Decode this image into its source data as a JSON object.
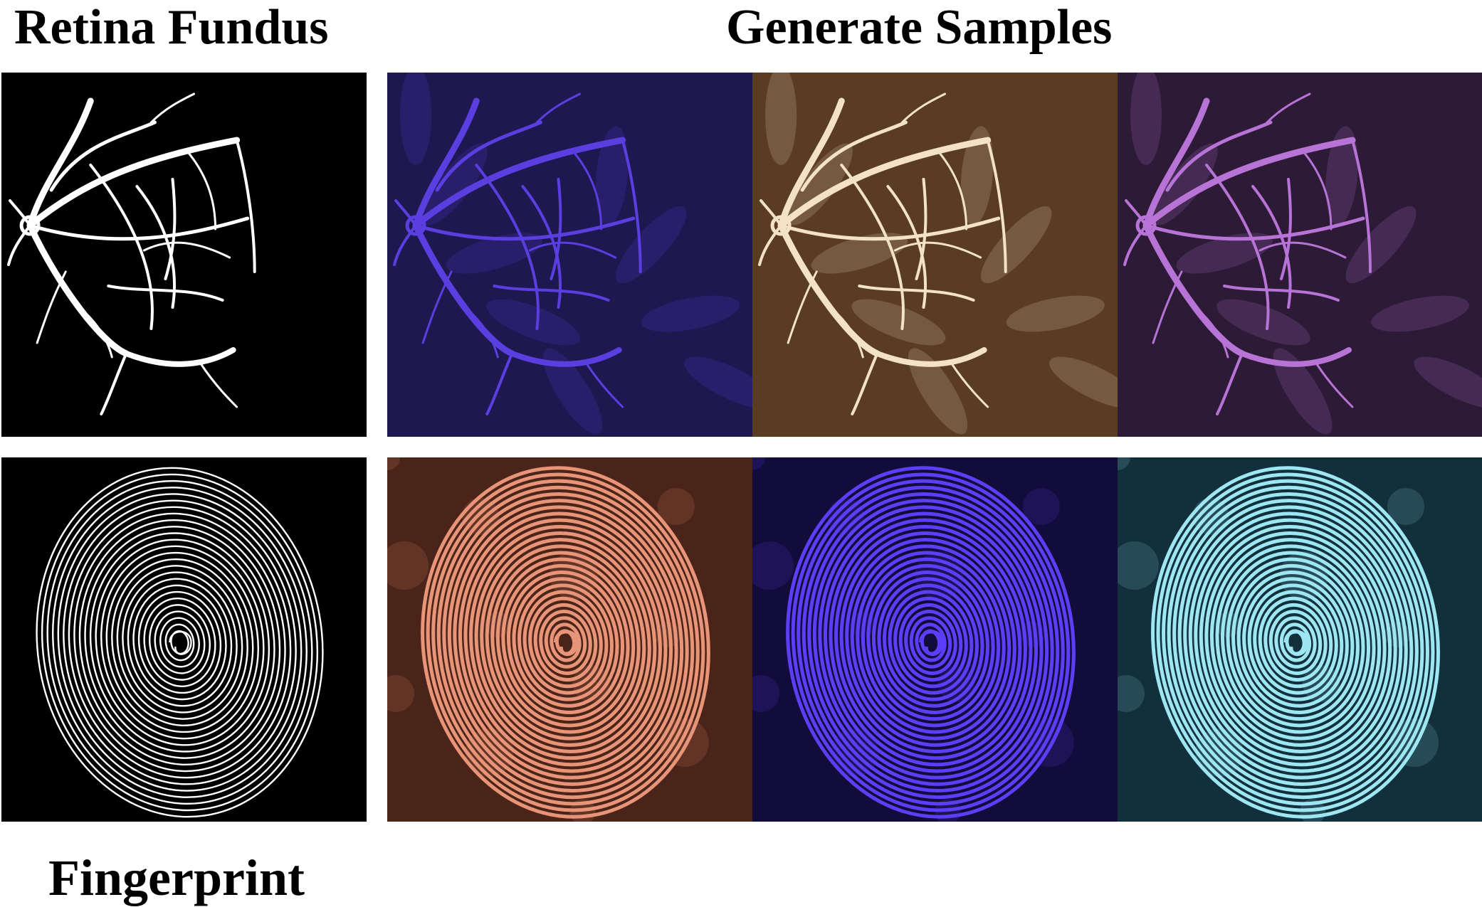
{
  "labels": {
    "retina": "Retina Fundus",
    "generate": "Generate Samples",
    "fingerprint": "Fingerprint"
  },
  "rows": [
    {
      "name": "retina-fundus",
      "mask": {
        "background": "#000000",
        "stroke": "#ffffff"
      },
      "samples": [
        {
          "background": "#1e1850",
          "stroke": "#5a3ee0"
        },
        {
          "background": "#5a3c22",
          "stroke": "#f4e2c6"
        },
        {
          "background": "#2c1a36",
          "stroke": "#b873d6"
        }
      ]
    },
    {
      "name": "fingerprint",
      "mask": {
        "background": "#000000",
        "stroke": "#ffffff"
      },
      "samples": [
        {
          "background": "#4a2418",
          "stroke": "#e89478"
        },
        {
          "background": "#120c3a",
          "stroke": "#5b3ef6"
        },
        {
          "background": "#12303c",
          "stroke": "#9de6f2"
        }
      ]
    }
  ]
}
